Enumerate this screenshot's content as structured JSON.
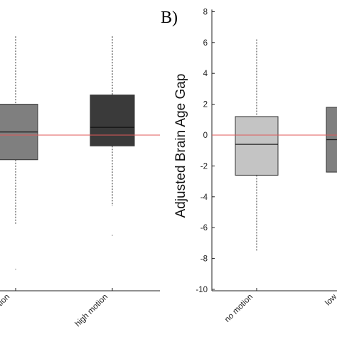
{
  "chart_data": [
    {
      "type": "box",
      "panel_label": "",
      "categories": [
        "no motion",
        "high motion"
      ],
      "visible_categories": [
        "",
        "high motion"
      ],
      "visible_category_fragments": [
        "motion",
        "high motion"
      ],
      "ylabel": "",
      "ylim": [
        -10,
        8
      ],
      "reference_line": 0,
      "reference_color": "#e05a5a",
      "series": [
        {
          "whisker_low": -5.8,
          "q1": -1.6,
          "median": 0.2,
          "q3": 2.0,
          "whisker_high": 6.4,
          "outliers": [
            -8.7
          ],
          "fill": "#7f7f7f"
        },
        {
          "whisker_low": -4.6,
          "q1": -0.7,
          "median": 0.5,
          "q3": 2.6,
          "whisker_high": 6.4,
          "outliers": [
            -6.5
          ],
          "fill": "#3a3a3a"
        }
      ]
    },
    {
      "type": "box",
      "panel_label": "B)",
      "categories": [
        "no motion",
        "low motion"
      ],
      "visible_category_fragments": [
        "no motion",
        "low"
      ],
      "ylabel": "Adjusted Brain Age Gap",
      "ylim": [
        -10,
        8
      ],
      "yticks": [
        8,
        6,
        4,
        2,
        0,
        -2,
        -4,
        -6,
        -8,
        -10
      ],
      "reference_line": 0,
      "reference_color": "#e05a5a",
      "series": [
        {
          "whisker_low": -7.5,
          "q1": -2.6,
          "median": -0.6,
          "q3": 1.2,
          "whisker_high": 6.2,
          "outliers": [],
          "fill": "#c4c4c4"
        },
        {
          "whisker_low": null,
          "q1": -2.4,
          "median": -0.3,
          "q3": 1.8,
          "whisker_high": null,
          "outliers": [],
          "fill": "#808080"
        }
      ]
    }
  ]
}
